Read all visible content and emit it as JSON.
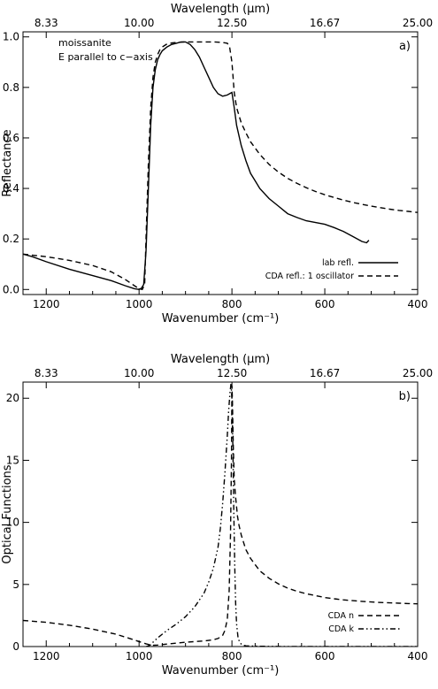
{
  "chart_data": [
    {
      "type": "line",
      "panel_label": "a)",
      "annotation_lines": [
        "moissanite",
        "E parallel to c−axis"
      ],
      "xlabel": "Wavenumber (cm⁻¹)",
      "ylabel": "Reflectance",
      "top_xlabel": "Wavelength (μm)",
      "xlim": [
        1250,
        400
      ],
      "ylim": [
        -0.02,
        1.02
      ],
      "xticks": [
        1200,
        1000,
        800,
        600,
        400
      ],
      "xtick_labels": [
        "1200",
        "1000",
        "800",
        "600",
        "400"
      ],
      "yticks": [
        0.0,
        0.2,
        0.4,
        0.6,
        0.8,
        1.0
      ],
      "ytick_labels": [
        "0.0",
        "0.2",
        "0.4",
        "0.6",
        "0.8",
        "1.0"
      ],
      "top_tick_labels": [
        "8.33",
        "10.00",
        "12.50",
        "16.67",
        "25.00"
      ],
      "grid": false,
      "legend_position": "bottom-right",
      "series": [
        {
          "name": "lab refl.",
          "style": "solid",
          "x": [
            1250,
            1230,
            1200,
            1150,
            1100,
            1060,
            1030,
            1010,
            1000,
            995,
            990,
            985,
            980,
            975,
            970,
            965,
            960,
            955,
            950,
            940,
            930,
            920,
            910,
            900,
            890,
            880,
            870,
            860,
            850,
            840,
            830,
            820,
            810,
            800,
            795,
            790,
            780,
            770,
            760,
            750,
            740,
            720,
            700,
            680,
            660,
            640,
            620,
            600,
            580,
            560,
            540,
            520,
            510,
            505
          ],
          "y": [
            0.14,
            0.13,
            0.11,
            0.08,
            0.055,
            0.035,
            0.015,
            0.003,
            0.0,
            0.005,
            0.02,
            0.15,
            0.4,
            0.65,
            0.8,
            0.87,
            0.91,
            0.93,
            0.945,
            0.96,
            0.97,
            0.975,
            0.98,
            0.98,
            0.97,
            0.95,
            0.92,
            0.88,
            0.84,
            0.8,
            0.775,
            0.765,
            0.77,
            0.78,
            0.72,
            0.65,
            0.57,
            0.51,
            0.46,
            0.43,
            0.4,
            0.36,
            0.33,
            0.3,
            0.285,
            0.272,
            0.265,
            0.258,
            0.245,
            0.23,
            0.21,
            0.19,
            0.185,
            0.195
          ]
        },
        {
          "name": "CDA refl.: 1 oscillator",
          "style": "dashed",
          "x": [
            1250,
            1200,
            1150,
            1100,
            1060,
            1030,
            1010,
            1000,
            993,
            988,
            985,
            980,
            975,
            970,
            965,
            960,
            955,
            950,
            940,
            930,
            920,
            900,
            880,
            860,
            840,
            820,
            810,
            805,
            800,
            798,
            795,
            790,
            780,
            770,
            760,
            740,
            720,
            700,
            680,
            660,
            640,
            620,
            600,
            580,
            560,
            540,
            520,
            500,
            480,
            460,
            440,
            420,
            400
          ],
          "y": [
            0.14,
            0.13,
            0.115,
            0.095,
            0.07,
            0.04,
            0.015,
            0.003,
            0.0,
            0.02,
            0.2,
            0.5,
            0.72,
            0.84,
            0.9,
            0.93,
            0.95,
            0.96,
            0.972,
            0.976,
            0.978,
            0.98,
            0.98,
            0.98,
            0.98,
            0.978,
            0.975,
            0.96,
            0.9,
            0.85,
            0.78,
            0.72,
            0.66,
            0.62,
            0.585,
            0.535,
            0.495,
            0.465,
            0.44,
            0.42,
            0.403,
            0.388,
            0.375,
            0.364,
            0.354,
            0.345,
            0.337,
            0.33,
            0.324,
            0.318,
            0.313,
            0.309,
            0.305
          ]
        }
      ]
    },
    {
      "type": "line",
      "panel_label": "b)",
      "xlabel": "Wavenumber (cm⁻¹)",
      "ylabel": "Optical Functions",
      "top_xlabel": "Wavelength (μm)",
      "xlim": [
        1250,
        400
      ],
      "ylim": [
        0,
        21.3
      ],
      "xticks": [
        1200,
        1000,
        800,
        600,
        400
      ],
      "xtick_labels": [
        "1200",
        "1000",
        "800",
        "600",
        "400"
      ],
      "yticks": [
        0,
        5,
        10,
        15,
        20
      ],
      "ytick_labels": [
        "0",
        "5",
        "10",
        "15",
        "20"
      ],
      "top_tick_labels": [
        "8.33",
        "10.00",
        "12.50",
        "16.67",
        "25.00"
      ],
      "grid": false,
      "legend_position": "bottom-right",
      "series": [
        {
          "name": "CDA n",
          "style": "dashed",
          "x": [
            1250,
            1200,
            1150,
            1100,
            1050,
            1020,
            1000,
            985,
            975,
            970,
            960,
            940,
            920,
            900,
            880,
            860,
            840,
            830,
            820,
            815,
            810,
            806,
            803,
            801,
            800,
            799,
            797,
            795,
            792,
            788,
            785,
            780,
            775,
            770,
            760,
            750,
            740,
            720,
            700,
            680,
            660,
            640,
            620,
            600,
            580,
            560,
            540,
            520,
            500,
            480,
            460,
            440,
            420,
            400
          ],
          "y": [
            2.1,
            1.95,
            1.72,
            1.4,
            1.0,
            0.65,
            0.4,
            0.22,
            0.12,
            0.1,
            0.12,
            0.2,
            0.28,
            0.35,
            0.4,
            0.45,
            0.55,
            0.65,
            0.9,
            1.3,
            2.2,
            4.5,
            9.0,
            15.0,
            21.0,
            20.0,
            16.0,
            13.5,
            12.0,
            10.5,
            9.8,
            9.0,
            8.4,
            7.8,
            7.1,
            6.6,
            6.1,
            5.5,
            5.05,
            4.7,
            4.45,
            4.25,
            4.1,
            3.95,
            3.85,
            3.76,
            3.7,
            3.64,
            3.59,
            3.55,
            3.52,
            3.49,
            3.46,
            3.44
          ]
        },
        {
          "name": "CDA k",
          "style": "dash-dot-dot",
          "x": [
            985,
            980,
            975,
            970,
            960,
            950,
            940,
            920,
            900,
            880,
            860,
            850,
            840,
            830,
            825,
            820,
            815,
            810,
            807,
            804,
            802,
            800,
            798,
            796,
            794,
            792,
            790,
            787,
            784,
            780,
            775,
            770,
            760,
            740,
            700,
            600,
            500,
            400
          ],
          "y": [
            0.0,
            0.05,
            0.15,
            0.35,
            0.7,
            1.0,
            1.3,
            1.8,
            2.4,
            3.2,
            4.3,
            5.2,
            6.3,
            8.0,
            9.5,
            11.5,
            14.0,
            17.0,
            19.0,
            20.5,
            21.2,
            20.0,
            16.0,
            11.0,
            6.5,
            3.5,
            1.8,
            0.8,
            0.4,
            0.2,
            0.1,
            0.06,
            0.04,
            0.02,
            0.01,
            0.005,
            0.003,
            0.002
          ]
        }
      ]
    }
  ]
}
